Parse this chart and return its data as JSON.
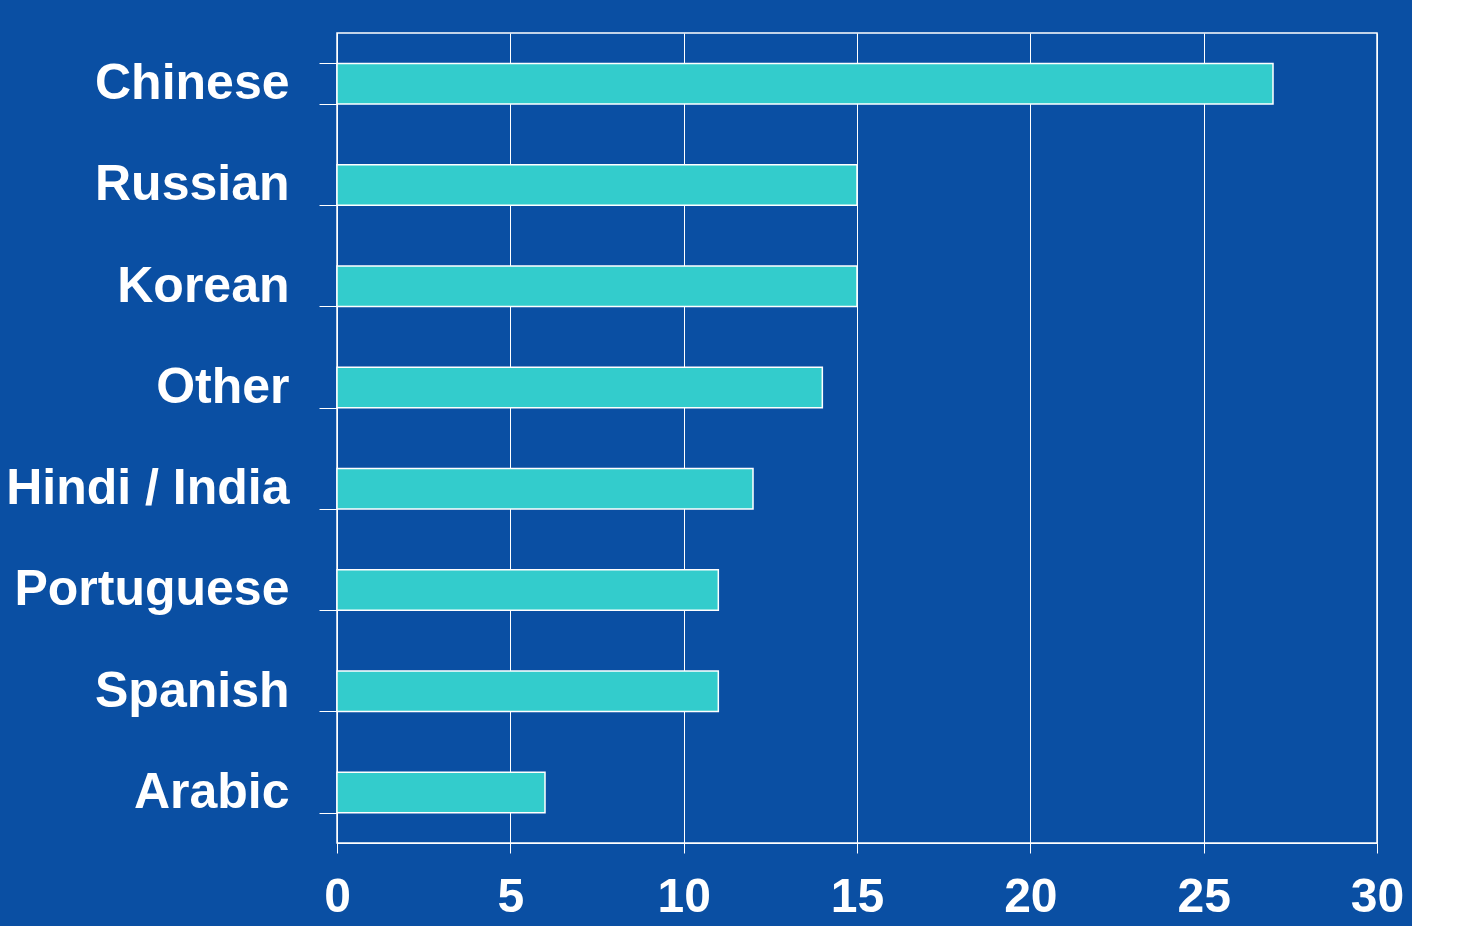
{
  "chart_data": {
    "type": "bar",
    "orientation": "horizontal",
    "categories": [
      "Chinese",
      "Russian",
      "Korean",
      "Other",
      "Hindi / India",
      "Portuguese",
      "Spanish",
      "Arabic"
    ],
    "values": [
      27,
      15,
      15,
      14,
      12,
      11,
      11,
      6
    ],
    "color": "#33cccc",
    "xlim": [
      0,
      30
    ],
    "xticks": [
      0,
      5,
      10,
      15,
      20,
      25,
      30
    ],
    "grid": "x"
  }
}
